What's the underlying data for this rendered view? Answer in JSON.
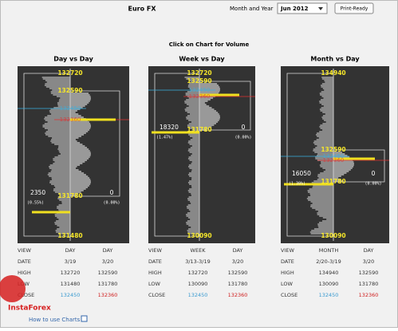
{
  "header": {
    "title": "Euro FX",
    "period_label": "Month and Year",
    "period": "Jun 2012",
    "print_button": "Print-Ready"
  },
  "instruction": "Click on Chart for Volume",
  "panels": [
    {
      "title": "Day vs Day",
      "price_labels": [
        "132720",
        "132590",
        "131780",
        "131480"
      ],
      "close_labels": [
        "132450",
        "132360"
      ],
      "left_volume": "2350",
      "left_pct": "(0.55%)",
      "right_volume": "0",
      "right_pct": "(0.00%)",
      "table": [
        [
          "VIEW",
          "DAY",
          "DAY"
        ],
        [
          "DATE",
          "3/19",
          "3/20"
        ],
        [
          "HIGH",
          "132720",
          "132590"
        ],
        [
          "LOW",
          "131480",
          "131780"
        ],
        [
          "CLOSE",
          "132450",
          "132360"
        ]
      ]
    },
    {
      "title": "Week vs Day",
      "price_labels": [
        "132720",
        "132590",
        "131780",
        "130090"
      ],
      "close_labels": [
        "132450",
        "132360"
      ],
      "left_volume": "18320",
      "left_pct": "(1.47%)",
      "right_volume": "0",
      "right_pct": "(0.00%)",
      "table": [
        [
          "VIEW",
          "WEEK",
          "DAY"
        ],
        [
          "DATE",
          "3/13-3/19",
          "3/20"
        ],
        [
          "HIGH",
          "132720",
          "132590"
        ],
        [
          "LOW",
          "130090",
          "131780"
        ],
        [
          "CLOSE",
          "132450",
          "132360"
        ]
      ]
    },
    {
      "title": "Month vs Day",
      "price_labels": [
        "134940",
        "132590",
        "131780",
        "130090"
      ],
      "close_labels": [
        "132450",
        "132360"
      ],
      "left_volume": "16050",
      "left_pct": "(1.30%)",
      "right_volume": "0",
      "right_pct": "(0.00%)",
      "table": [
        [
          "VIEW",
          "MONTH",
          "DAY"
        ],
        [
          "DATE",
          "2/20-3/19",
          "3/20"
        ],
        [
          "HIGH",
          "134940",
          "132590"
        ],
        [
          "LOW",
          "130090",
          "131780"
        ],
        [
          "CLOSE",
          "132450",
          "132360"
        ]
      ]
    }
  ],
  "footer": "How to use Charts",
  "watermark": "InstaForex"
}
